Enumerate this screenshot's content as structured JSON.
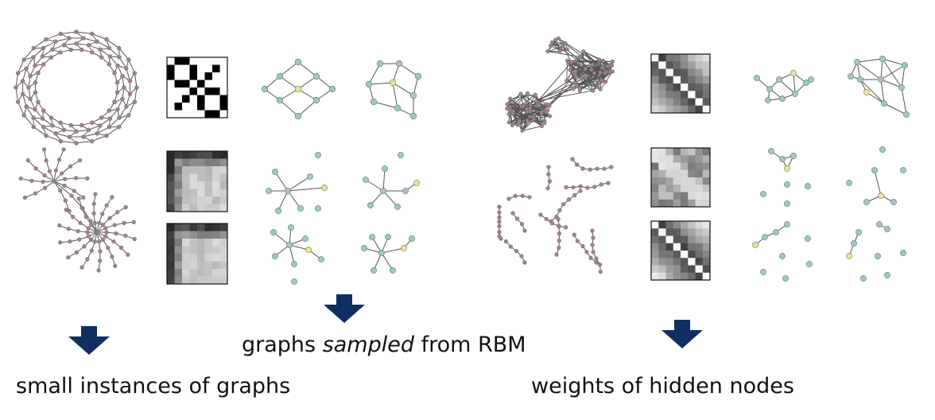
{
  "captions": {
    "small_instances": "small instances of graphs",
    "sampled_prefix": "graphs ",
    "sampled_emph": "sampled",
    "sampled_suffix": " from RBM",
    "hidden_weights": "weights of hidden nodes"
  },
  "colors": {
    "original_node": "#a88088",
    "sampled_node": "#97cdbe",
    "highlight_node": "#ede58d",
    "edge": "#555555",
    "arrow": "#0f2f63",
    "frame": "#111111"
  }
}
